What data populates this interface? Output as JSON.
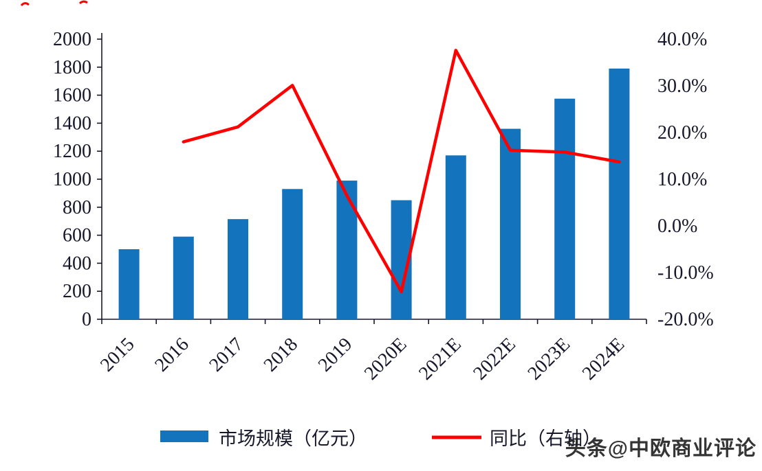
{
  "chart_data": {
    "type": "combo",
    "title": "",
    "categories": [
      "2015",
      "2016",
      "2017",
      "2018",
      "2019",
      "2020E",
      "2021E",
      "2022E",
      "2023E",
      "2024E"
    ],
    "series": [
      {
        "name": "市场规模（亿元）",
        "type": "bar",
        "axis": "left",
        "color": "#1373BD",
        "values": [
          500,
          590,
          715,
          930,
          990,
          850,
          1170,
          1360,
          1575,
          1790
        ]
      },
      {
        "name": "同比（右轴）",
        "type": "line",
        "axis": "right",
        "color": "#FE0000",
        "values": [
          null,
          18.0,
          21.2,
          30.1,
          6.5,
          -14.1,
          37.6,
          16.2,
          15.8,
          13.7
        ]
      }
    ],
    "left_axis": {
      "min": 0,
      "max": 2000,
      "step": 200,
      "labels": [
        "0",
        "200",
        "400",
        "600",
        "800",
        "1000",
        "1200",
        "1400",
        "1600",
        "1800",
        "2000"
      ]
    },
    "right_axis": {
      "min": -20,
      "max": 40,
      "step": 10,
      "labels": [
        "-20.0%",
        "-10.0%",
        "0.0%",
        "10.0%",
        "20.0%",
        "30.0%",
        "40.0%"
      ]
    },
    "grid": false,
    "legend_position": "bottom",
    "legend": [
      {
        "label": "市场规模（亿元）",
        "color": "#1373BD",
        "marker": "bar"
      },
      {
        "label": "同比（右轴）",
        "color": "#FE0000",
        "marker": "line"
      }
    ]
  },
  "watermark": {
    "text": "头条@中欧商业评论"
  }
}
